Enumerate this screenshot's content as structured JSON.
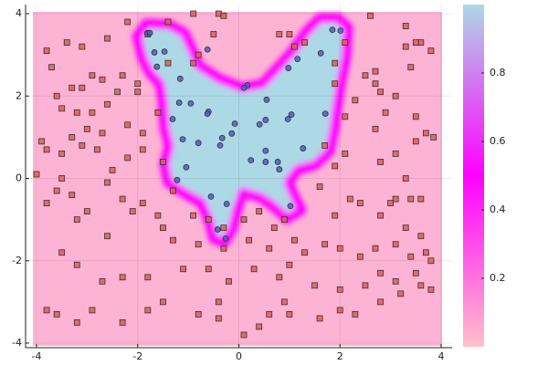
{
  "chart_data": {
    "type": "scatter",
    "xlim": [
      -4,
      4
    ],
    "ylim": [
      -4,
      4
    ],
    "xticks": [
      -4,
      -2,
      0,
      2,
      4
    ],
    "yticks": [
      -4,
      -2,
      0,
      2,
      4
    ],
    "grid": true,
    "colorbar": {
      "lim": [
        0,
        1
      ],
      "ticks": [
        0.2,
        0.4,
        0.6,
        0.8
      ],
      "colors": [
        "#ffc0cb",
        "#ff00ff",
        "#add8e6"
      ]
    },
    "series": [
      {
        "color": "#e05a5a",
        "marker": "square",
        "x": [
          -2.2,
          -1.4,
          -0.9,
          -0.4,
          -0.3,
          1.0,
          1.3,
          2.6,
          3.3,
          3.6,
          3.8,
          2.1,
          2.5,
          2.7,
          3.3,
          3.4,
          3.5,
          -3.8,
          -3.7,
          -3.4,
          -3.1,
          -2.6,
          -2.3,
          -2.7,
          -2.9,
          -3.1,
          -3.3,
          -3.6,
          -3.5,
          -3.2,
          -2.9,
          -2.6,
          -2.4,
          -2.0,
          -1.4,
          -0.9,
          -0.5,
          0.8,
          1.1,
          1.9,
          2.7,
          2.8,
          3.1,
          2.3,
          2.1,
          2.7,
          2.9,
          3.5,
          3.7,
          3.5,
          3.85,
          2.1,
          2.8,
          3.1,
          3.3,
          3.4,
          3.6,
          3.1,
          3.0,
          2.4,
          2.2,
          1.6,
          1.9,
          2.8,
          3.3,
          3.6,
          3.7,
          3.4,
          3.1,
          2.7,
          2.4,
          2.0,
          1.7,
          1.3,
          1.0,
          1.1,
          0.6,
          0.2,
          -0.3,
          -0.8,
          -1.3,
          -1.1,
          -0.6,
          -0.2,
          0.3,
          0.8,
          0.9,
          1.5,
          2.0,
          2.5,
          2.8,
          3.1,
          3.5,
          3.6,
          3.8,
          3.8,
          3.2,
          2.8,
          2.3,
          2.0,
          1.6,
          1.0,
          0.6,
          0.4,
          0.1,
          -0.4,
          -0.4,
          -0.8,
          -1.5,
          -1.8,
          -1.8,
          -2.3,
          -2.9,
          -3.2,
          -3.6,
          -3.8,
          -3.2,
          -3.5,
          -2.7,
          -2.3,
          -2.6,
          -3.2,
          -3.8,
          -3.6,
          -3.5,
          -3.3,
          -3.0,
          -2.6,
          -2.3,
          -2.1,
          -1.9,
          -1.6,
          -1.5,
          -1.3,
          -0.9,
          -0.6,
          -0.3,
          0.1,
          0.4,
          0.7,
          0.9,
          -4.0,
          -3.9,
          -3.8,
          -3.5,
          -3.1,
          -2.8,
          -2.5,
          -2.2,
          -1.9,
          -1.5,
          -2.7,
          -3.0,
          -3.3,
          -2.2,
          -1.6,
          -1.9,
          1.7,
          1.9,
          -1.8,
          -2.0,
          -0.8,
          1.9
        ],
        "y": [
          3.8,
          3.8,
          4.0,
          4.0,
          3.95,
          3.5,
          3.3,
          3.95,
          3.7,
          3.3,
          3.1,
          3.3,
          2.5,
          2.6,
          3.2,
          2.7,
          3.3,
          3.1,
          2.7,
          3.3,
          3.2,
          3.4,
          2.5,
          2.4,
          2.5,
          2.2,
          2.2,
          2.0,
          1.7,
          1.6,
          1.6,
          1.8,
          2.1,
          2.3,
          2.8,
          2.8,
          3.5,
          3.5,
          3.2,
          2.8,
          2.3,
          2.1,
          2.0,
          1.9,
          1.5,
          1.2,
          1.6,
          1.5,
          1.1,
          0.9,
          1.0,
          0.6,
          0.4,
          0.6,
          0.0,
          -0.5,
          -0.5,
          -0.5,
          -0.6,
          -0.6,
          -0.5,
          -0.2,
          -0.9,
          -0.9,
          -1.2,
          -1.4,
          -1.8,
          -1.9,
          -1.6,
          -1.7,
          -1.9,
          -1.7,
          -1.6,
          -1.8,
          -2.1,
          -1.5,
          -1.7,
          -1.5,
          -1.7,
          -1.6,
          -1.5,
          -2.2,
          -2.2,
          -2.5,
          -2.2,
          -2.4,
          -3.0,
          -2.6,
          -2.7,
          -2.6,
          -2.3,
          -2.5,
          -2.3,
          -2.6,
          -2.0,
          -2.7,
          -2.8,
          -3.0,
          -3.3,
          -3.2,
          -3.4,
          -3.3,
          -3.3,
          -3.6,
          -3.8,
          -3.0,
          -3.4,
          -3.3,
          -3.0,
          -2.4,
          -3.2,
          -3.5,
          -3.2,
          -3.5,
          -3.3,
          -3.2,
          -2.1,
          -1.8,
          -2.5,
          -2.4,
          -1.4,
          -1.0,
          -0.6,
          -0.3,
          0.0,
          -0.4,
          -0.8,
          -0.1,
          -0.5,
          -0.8,
          -0.6,
          -0.9,
          -1.2,
          -0.3,
          -0.9,
          -1.0,
          -1.2,
          -1.0,
          -0.8,
          -1.2,
          -1.0,
          0.1,
          0.9,
          0.7,
          0.6,
          0.8,
          0.7,
          0.2,
          0.5,
          0.7,
          0.4,
          1.1,
          1.2,
          1.0,
          1.3,
          1.6,
          1.1,
          0.8,
          0.3,
          3.5,
          2.1,
          3.0,
          2.3
        ]
      },
      {
        "color": "#4a5fc1",
        "marker": "circle",
        "x": [
          -1.81,
          -1.76,
          -1.67,
          -1.47,
          -1.62,
          -1.16,
          -0.62,
          0.17,
          0.98,
          1.16,
          1.62,
          1.85,
          2.01,
          1.71,
          1.27,
          1.04,
          0.97,
          0.55,
          0.53,
          0.41,
          -0.08,
          -0.6,
          -0.95,
          -1.18,
          -1.31,
          -1.11,
          -0.8,
          -0.62,
          -0.33,
          -0.14,
          -0.37,
          0.24,
          0.53,
          0.8,
          0.77,
          -0.55,
          -0.24,
          -1.22,
          -1.04,
          1.02,
          -0.42,
          -0.26,
          0.53,
          0.1
        ],
        "y": [
          3.53,
          3.53,
          3.06,
          3.08,
          2.71,
          2.42,
          3.13,
          2.26,
          2.68,
          2.9,
          3.04,
          3.61,
          3.59,
          1.57,
          0.73,
          1.55,
          1.44,
          1.91,
          1.42,
          1.31,
          1.33,
          1.62,
          1.82,
          1.84,
          1.44,
          0.95,
          0.86,
          1.57,
          0.98,
          1.09,
          0.8,
          0.44,
          0.4,
          0.22,
          0.4,
          -0.44,
          -0.62,
          -0.04,
          0.27,
          -0.67,
          -1.24,
          -1.46,
          0.67,
          2.2
        ]
      }
    ]
  }
}
